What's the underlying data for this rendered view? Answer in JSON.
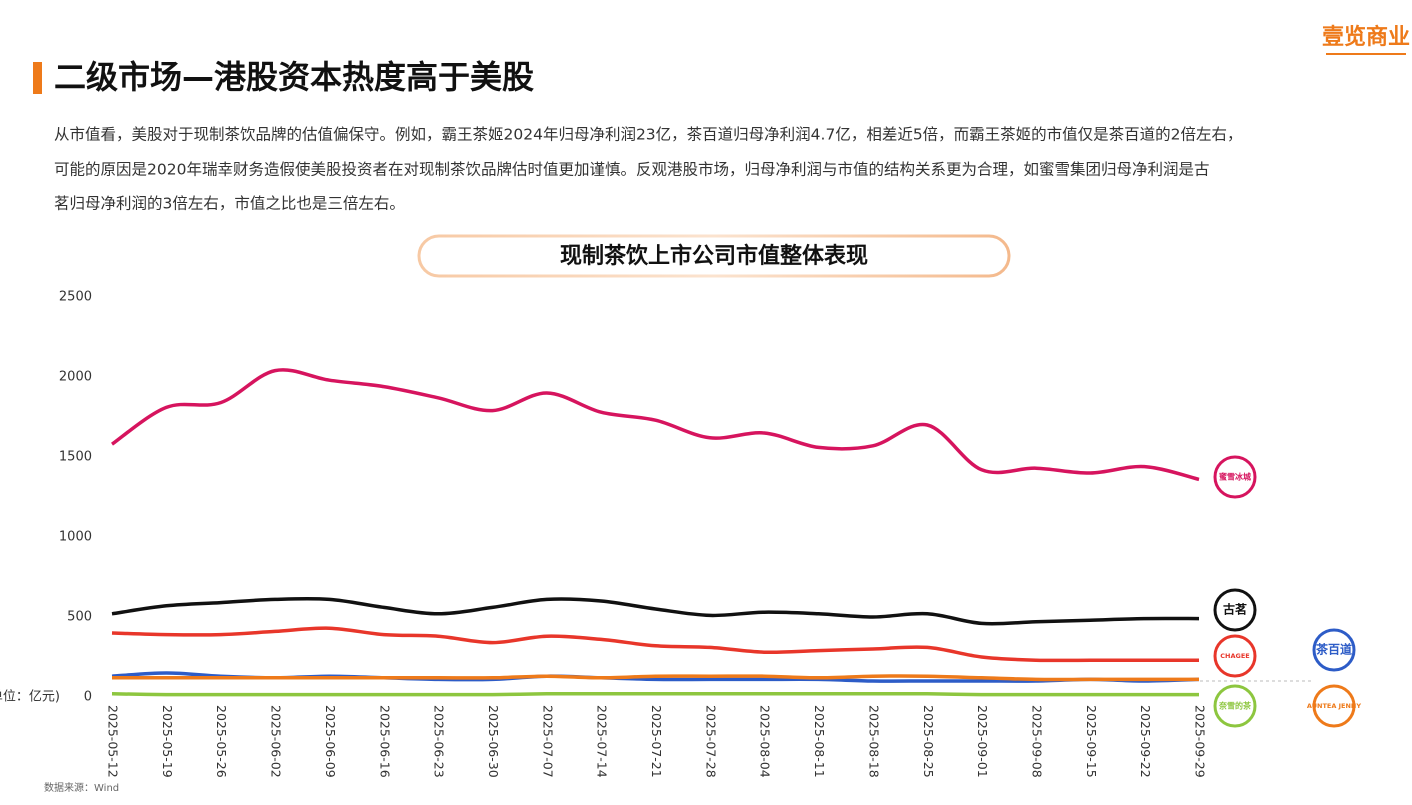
{
  "header": {
    "logo": "壹览商业",
    "title": "二级市场—港股资本热度高于美股"
  },
  "paragraph": {
    "lines": [
      "从市值看，美股对于现制茶饮品牌的估值偏保守。例如，霸王茶姬2024年归母净利润23亿，茶百道归母净利润4.7亿，相差近5倍，而霸王茶姬的市值仅是茶百道的2倍左右，",
      "可能的原因是2020年瑞幸财务造假使美股投资者在对现制茶饮品牌估时值更加谨慎。反观港股市场，归母净利润与市值的结构关系更为合理，如蜜雪集团归母净利润是古",
      "茗归母净利润的3倍左右，市值之比也是三倍左右。"
    ]
  },
  "chart_data": {
    "type": "line",
    "title": "现制茶饮上市公司市值整体表现",
    "y_unit": "(单位：亿元)",
    "x": [
      "2025-05-12",
      "2025-05-19",
      "2025-05-26",
      "2025-06-02",
      "2025-06-09",
      "2025-06-16",
      "2025-06-23",
      "2025-06-30",
      "2025-07-07",
      "2025-07-14",
      "2025-07-21",
      "2025-07-28",
      "2025-08-04",
      "2025-08-11",
      "2025-08-18",
      "2025-08-25",
      "2025-09-01",
      "2025-09-08",
      "2025-09-15",
      "2025-09-22",
      "2025-09-29"
    ],
    "ylim": [
      0,
      2500
    ],
    "yticks": [
      0,
      500,
      1000,
      1500,
      2000,
      2500
    ],
    "series": [
      {
        "name": "蜜雪冰城",
        "color": "#d6145e",
        "values": [
          1580,
          1810,
          1840,
          2040,
          1980,
          1940,
          1870,
          1790,
          1900,
          1780,
          1730,
          1620,
          1650,
          1560,
          1570,
          1700,
          1420,
          1430,
          1400,
          1440,
          1360
        ]
      },
      {
        "name": "古茗",
        "color": "#111111",
        "values": [
          520,
          570,
          590,
          610,
          610,
          560,
          520,
          560,
          610,
          600,
          550,
          510,
          530,
          520,
          500,
          520,
          460,
          470,
          480,
          490,
          490
        ]
      },
      {
        "name": "CHAGEE",
        "color": "#e8362a",
        "values": [
          400,
          390,
          390,
          410,
          430,
          390,
          380,
          340,
          380,
          360,
          320,
          310,
          280,
          290,
          300,
          310,
          250,
          230,
          230,
          230,
          230
        ]
      },
      {
        "name": "茶百道",
        "color": "#2d5cc7",
        "values": [
          130,
          150,
          130,
          120,
          130,
          120,
          110,
          110,
          130,
          120,
          110,
          110,
          110,
          110,
          100,
          100,
          100,
          100,
          110,
          100,
          110
        ]
      },
      {
        "name": "AUNTEA JENNY",
        "color": "#ee7a1a",
        "values": [
          120,
          120,
          120,
          120,
          120,
          120,
          120,
          120,
          130,
          120,
          130,
          130,
          130,
          120,
          130,
          130,
          120,
          110,
          110,
          110,
          110
        ]
      },
      {
        "name": "奈雪的茶",
        "color": "#8dc63f",
        "values": [
          20,
          15,
          15,
          15,
          15,
          15,
          15,
          15,
          20,
          20,
          20,
          20,
          20,
          20,
          20,
          20,
          15,
          15,
          15,
          15,
          15
        ]
      }
    ],
    "source": "数据来源：Wind"
  }
}
